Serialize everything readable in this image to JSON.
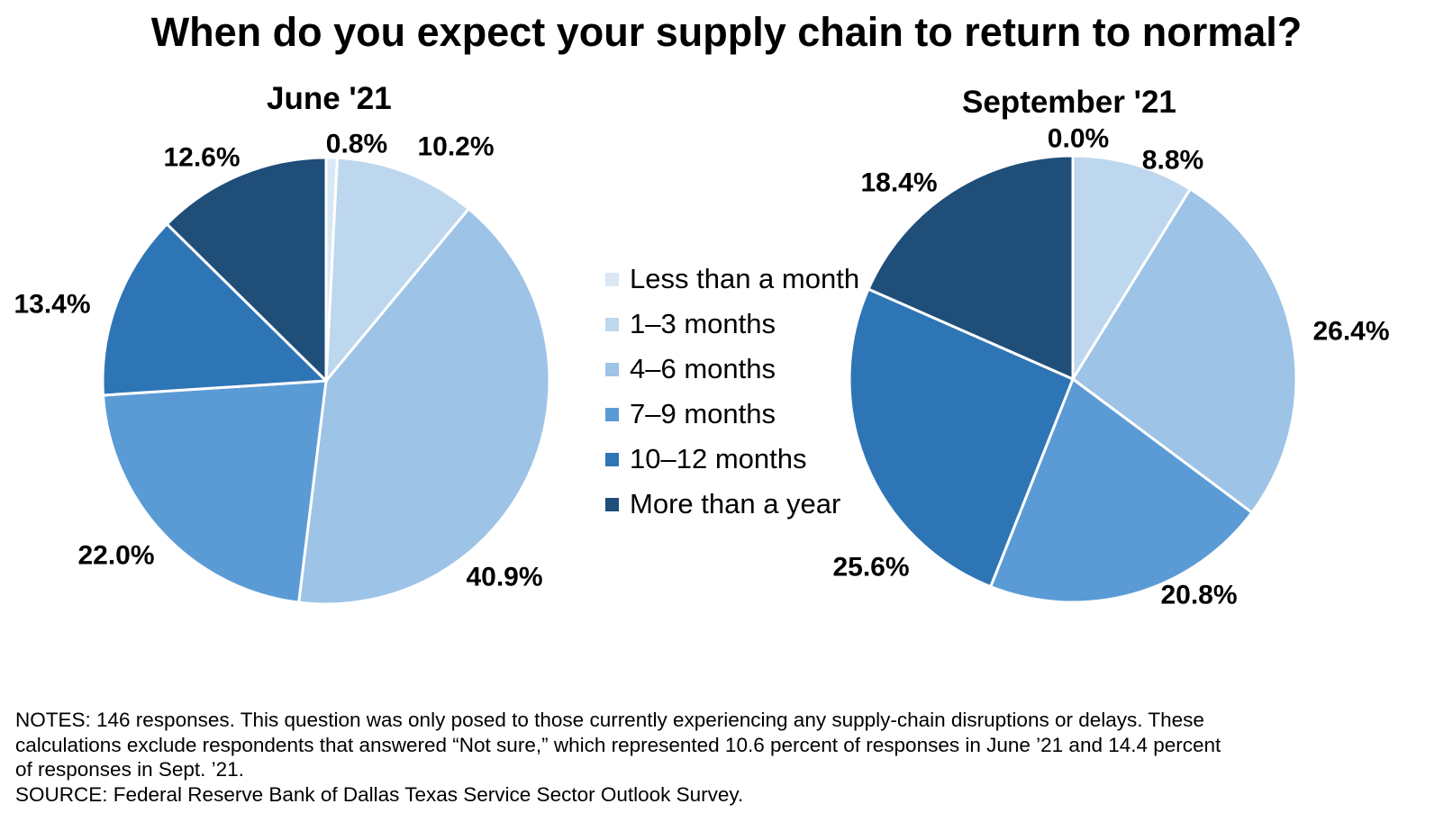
{
  "title": "When do you expect your supply chain to return to normal?",
  "chart_data": [
    {
      "type": "pie",
      "title": "June '21",
      "categories": [
        "Less than a month",
        "1–3 months",
        "4–6 months",
        "7–9 months",
        "10–12 months",
        "More than a year"
      ],
      "values": [
        0.8,
        10.2,
        40.9,
        22.0,
        13.4,
        12.6
      ],
      "labels": [
        "0.8%",
        "10.2%",
        "40.9%",
        "22.0%",
        "13.4%",
        "12.6%"
      ]
    },
    {
      "type": "pie",
      "title": "September '21",
      "categories": [
        "Less than a month",
        "1–3 months",
        "4–6 months",
        "7–9 months",
        "10–12 months",
        "More than a year"
      ],
      "values": [
        0.0,
        8.8,
        26.4,
        20.8,
        25.6,
        18.4
      ],
      "labels": [
        "0.0%",
        "8.8%",
        "26.4%",
        "20.8%",
        "25.6%",
        "18.4%"
      ]
    }
  ],
  "legend": {
    "placement": "center",
    "items": [
      {
        "label": "Less than a month",
        "color": "#dae8f5"
      },
      {
        "label": "1–3 months",
        "color": "#bdd7ee"
      },
      {
        "label": "4–6 months",
        "color": "#9dc3e6"
      },
      {
        "label": "7–9 months",
        "color": "#5b9bd5"
      },
      {
        "label": "10–12 months",
        "color": "#2e75b6"
      },
      {
        "label": "More than a year",
        "color": "#1f4e79"
      }
    ]
  },
  "notes": [
    "NOTES: 146 responses. This question was only posed to those currently experiencing any supply-chain disruptions or delays.  These",
    "calculations exclude respondents that answered “Not sure,” which represented 10.6 percent of responses in June ’21 and 14.4 percent",
    "of responses in Sept. ’21.",
    "SOURCE: Federal Reserve Bank of Dallas Texas Service Sector Outlook Survey."
  ]
}
